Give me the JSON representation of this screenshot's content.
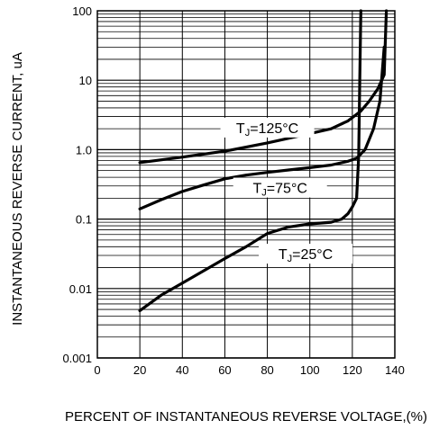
{
  "chart_data": {
    "type": "line",
    "title": "",
    "xlabel": "PERCENT OF INSTANTANEOUS REVERSE VOLTAGE,(%)",
    "ylabel": "INSTANTANEOUS REVERSE CURRENT, uA",
    "xlim": [
      0,
      140
    ],
    "ylim": [
      0.001,
      100
    ],
    "yscale": "log",
    "grid": true,
    "x_ticks": [
      "0",
      "20",
      "40",
      "60",
      "80",
      "100",
      "120",
      "140"
    ],
    "y_ticks": [
      "0.001",
      "0.01",
      "0.1",
      "1.0",
      "10",
      "100"
    ],
    "series": [
      {
        "name": "TJ=125°C",
        "label_main": "T",
        "label_sub": "J",
        "label_rest": "=125°C",
        "x": [
          20,
          40,
          60,
          80,
          100,
          110,
          118,
          124,
          128,
          132,
          135,
          136
        ],
        "y": [
          0.65,
          0.78,
          0.95,
          1.25,
          1.7,
          2.0,
          2.6,
          3.6,
          5.0,
          7.5,
          12,
          100
        ]
      },
      {
        "name": "TJ=75°C",
        "label_main": "T",
        "label_sub": "J",
        "label_rest": "=75°C",
        "x": [
          20,
          30,
          40,
          50,
          60,
          70,
          80,
          90,
          100,
          110,
          118,
          122,
          126,
          130,
          133,
          135
        ],
        "y": [
          0.14,
          0.19,
          0.25,
          0.31,
          0.38,
          0.43,
          0.47,
          0.51,
          0.55,
          0.6,
          0.68,
          0.75,
          1.0,
          2.0,
          5.0,
          30
        ]
      },
      {
        "name": "TJ=25°C",
        "label_main": "T",
        "label_sub": "J",
        "label_rest": "=25°C",
        "x": [
          20,
          30,
          40,
          50,
          60,
          70,
          80,
          90,
          100,
          110,
          115,
          118,
          120,
          122,
          123,
          123.5,
          124
        ],
        "y": [
          0.0048,
          0.008,
          0.012,
          0.018,
          0.027,
          0.04,
          0.062,
          0.077,
          0.085,
          0.09,
          0.1,
          0.12,
          0.15,
          0.2,
          0.8,
          10,
          100
        ]
      }
    ]
  }
}
